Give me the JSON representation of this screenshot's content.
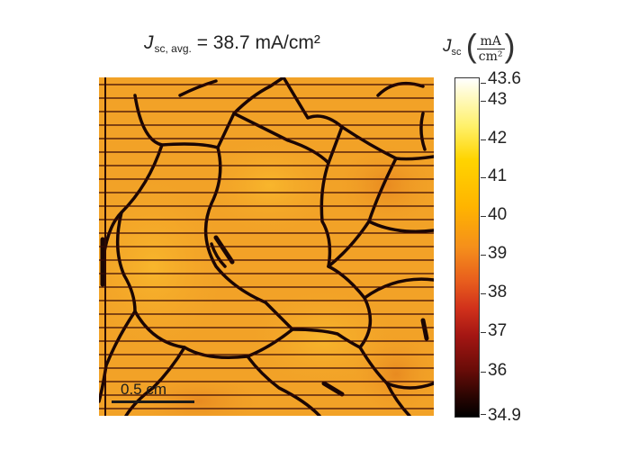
{
  "title": {
    "symbol": "J",
    "subscript": "sc, avg.",
    "value_text": " = 38.7 mA/cm²"
  },
  "colorbar": {
    "symbol": "J",
    "subscript": "sc",
    "unit_numerator": "mA",
    "unit_denominator": "cm²",
    "max_label": "43.6",
    "min_label": "34.9",
    "tick_labels": [
      "43",
      "42",
      "41",
      "40",
      "39",
      "38",
      "37",
      "36"
    ],
    "range": [
      34.9,
      43.6
    ],
    "colors": [
      "#000000",
      "#6a0c08",
      "#d1311b",
      "#f58f1b",
      "#ffd400",
      "#fff16b",
      "#ffffff"
    ]
  },
  "scale_bar": {
    "label": "0.5 cm"
  },
  "map": {
    "colormap": "hot",
    "background_color": "#f2a227",
    "grain_boundary_color": "#1a0604"
  }
}
